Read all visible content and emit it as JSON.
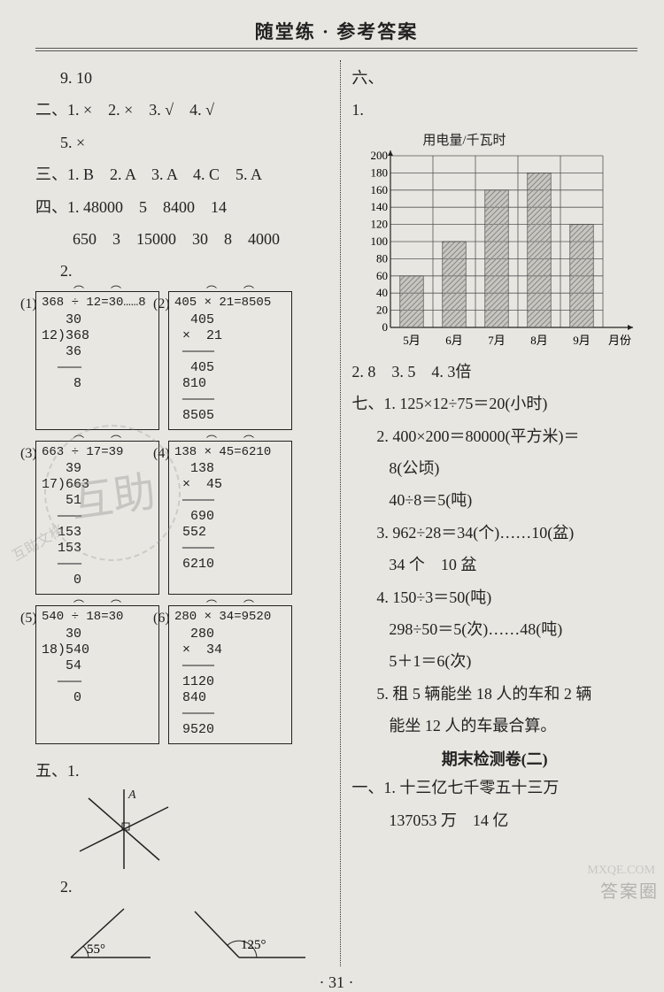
{
  "header": "随堂练 · 参考答案",
  "left": {
    "l1": "9. 10",
    "sec2": "二、1. ×　2. ×　3. √　4. √",
    "sec2b": "5. ×",
    "sec3": "三、1. B　2. A　3. A　4. C　5. A",
    "sec4a": "四、1. 48000　5　8400　14",
    "sec4b": "650　3　15000　30　8　4000",
    "sec4c": "2.",
    "calc1_idx": "(1)",
    "calc1_title": "368 ÷ 12=30……8",
    "calc1_body": "   30\n12)368\n   36\n  ———\n    8",
    "calc2_idx": "(2)",
    "calc2_title": "405 × 21=8505",
    "calc2_body": "  405\n ×  21\n ————\n  405\n 810\n ————\n 8505",
    "calc3_idx": "(3)",
    "calc3_title": "663 ÷ 17=39",
    "calc3_body": "   39\n17)663\n   51\n  ———\n  153\n  153\n  ———\n    0",
    "calc4_idx": "(4)",
    "calc4_title": "138 × 45=6210",
    "calc4_body": "  138\n ×  45\n ————\n  690\n 552\n ————\n 6210",
    "calc5_idx": "(5)",
    "calc5_title": "540 ÷ 18=30",
    "calc5_body": "   30\n18)540\n   54\n  ———\n    0",
    "calc6_idx": "(6)",
    "calc6_title": "280 × 34=9520",
    "calc6_body": "  280\n ×  34\n ————\n 1120\n 840\n ————\n 9520",
    "sec5": "五、1.",
    "sec5_A": "A",
    "sec5_2": "2.",
    "angle1": "55°",
    "angle2": "125°"
  },
  "right": {
    "sec6": "六、",
    "sec6_1": "1.",
    "chart": {
      "type": "bar",
      "y_title": "用电量/千瓦时",
      "x_title": "月份",
      "categories": [
        "5月",
        "6月",
        "7月",
        "8月",
        "9月"
      ],
      "values": [
        60,
        100,
        160,
        180,
        120
      ],
      "ylim": [
        0,
        200
      ],
      "ytick_step": 20,
      "yticks": [
        "200",
        "180",
        "160",
        "140",
        "120",
        "100",
        "80",
        "60",
        "40",
        "20",
        "0"
      ],
      "bar_color": "#8a8884",
      "hatch_color": "#8a8884",
      "grid_color": "#555555",
      "background_color": "#e8e6e0",
      "bar_width_ratio": 0.55,
      "axis_fontsize": 13,
      "title_fontsize": 15
    },
    "line_after_chart": "2. 8　3. 5　4. 3倍",
    "sec7_1": "七、1. 125×12÷75＝20(小时)",
    "sec7_2a": "2. 400×200＝80000(平方米)＝",
    "sec7_2b": "8(公顷)",
    "sec7_2c": "40÷8＝5(吨)",
    "sec7_3a": "3. 962÷28＝34(个)……10(盆)",
    "sec7_3b": "34 个　10 盆",
    "sec7_4a": "4. 150÷3＝50(吨)",
    "sec7_4b": "298÷50＝5(次)……48(吨)",
    "sec7_4c": "5＋1＝6(次)",
    "sec7_5a": "5. 租 5 辆能坐 18 人的车和 2 辆",
    "sec7_5b": "能坐 12 人的车最合算。",
    "exam2_title": "期末检测卷(二)",
    "exam2_l1": "一、1. 十三亿七千零五十三万",
    "exam2_l2": "137053 万　14 亿"
  },
  "footer": "· 31 ·",
  "watermarks": {
    "center": "互助",
    "side": "互助文档",
    "url": "MXQE.COM",
    "corner": "答案圈"
  }
}
